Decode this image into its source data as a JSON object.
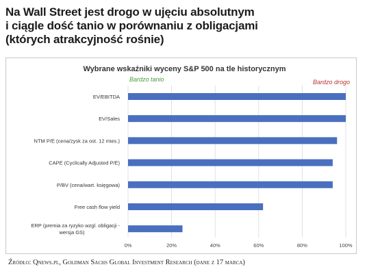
{
  "headline": {
    "lines": [
      "Na Wall Street jest drogo w ujęciu absolutnym",
      "i ciągle dość tanio w porównaniu z obligacjami",
      "(których atrakcyjność rośnie)"
    ]
  },
  "source_note": "Źródło: Qnews.pl, Goldman Sachs Global Investment Research (dane z 17 marca)",
  "colors": {
    "bar": "#4a6fbf",
    "cheap_label": "#4b9a3a",
    "expensive_label": "#b7382f",
    "gridline": "#d9d9d9"
  },
  "chart_data": {
    "type": "bar",
    "orientation": "horizontal",
    "title": "Wybrane wskaźniki wyceny S&P 500 na tle historycznym",
    "scale_left_label": "Bardzo tanio",
    "scale_right_label": "Bardzo drogo",
    "categories": [
      "EV/EBITDA",
      "EV/Sales",
      "NTM P/E (cena/zysk za ost. 12 mies.)",
      "CAPE (Cyclically Adjusted P/E)",
      "P/BV (cena/wart. księgowa)",
      "Free cash flow yield",
      "ERP (premia za ryzyko wzgl. obligacji - wersja GS)"
    ],
    "category_lines": [
      [
        "EV/EBITDA"
      ],
      [
        "EV/Sales"
      ],
      [
        "NTM P/E (cena/zysk za ost. 12 mies.)"
      ],
      [
        "CAPE (Cyclically Adjusted P/E)"
      ],
      [
        "P/BV (cena/wart. księgowa)"
      ],
      [
        "Free cash flow yield"
      ],
      [
        "ERP (premia za ryzyko wzgl. obligacji -",
        "wersja GS)"
      ]
    ],
    "values": [
      100,
      100,
      96,
      94,
      94,
      62,
      25
    ],
    "xlim": [
      0,
      100
    ],
    "x_ticks": [
      "0%",
      "20%",
      "40%",
      "60%",
      "80%",
      "100%"
    ],
    "xlabel": "",
    "ylabel": ""
  }
}
